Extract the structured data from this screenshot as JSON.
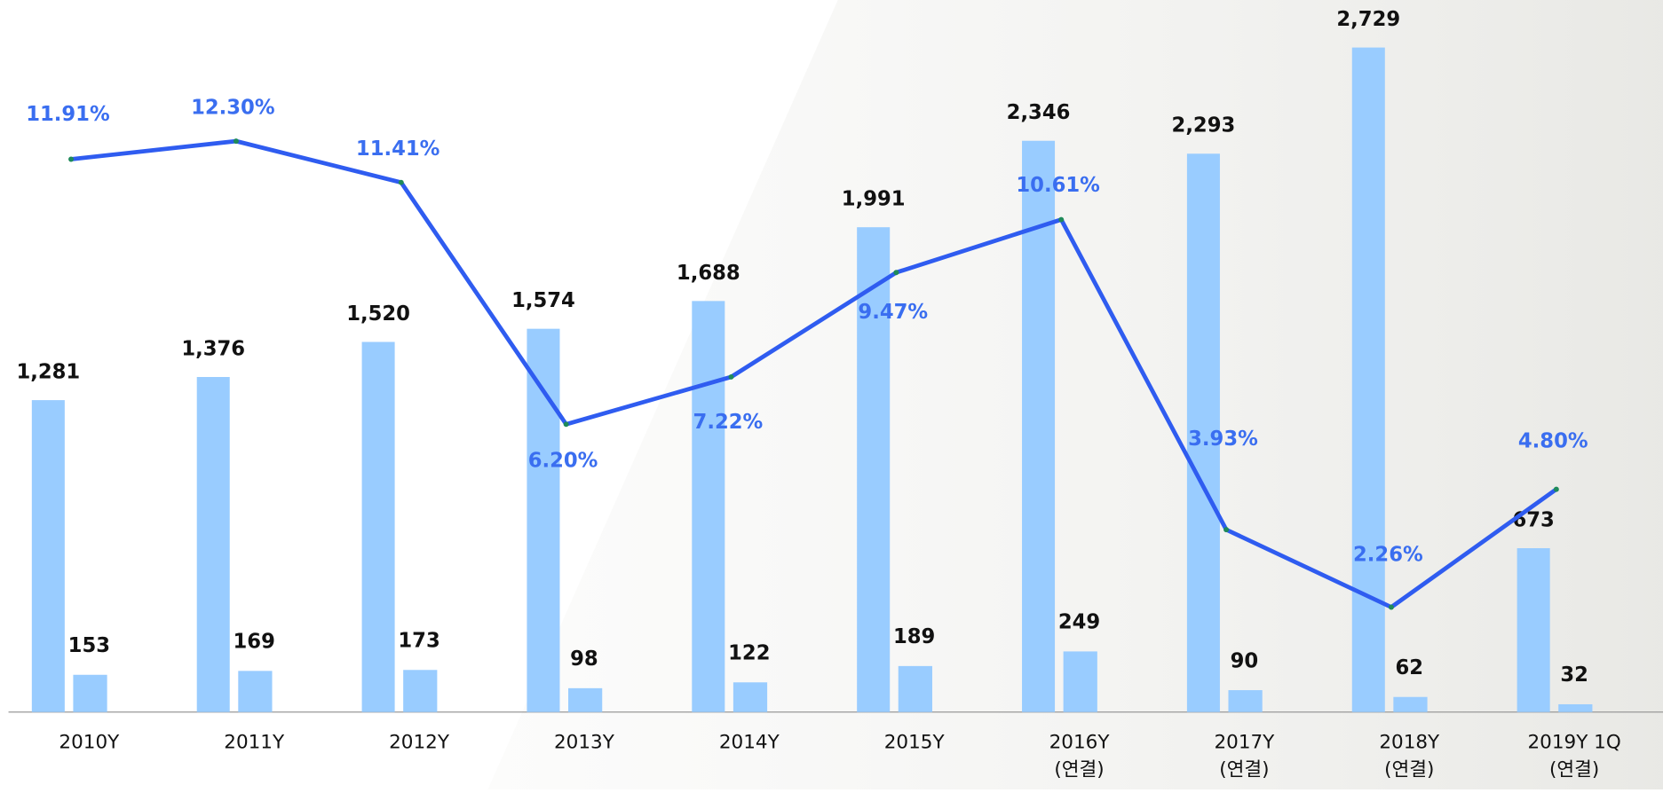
{
  "chart_data": {
    "type": "bar",
    "categories": [
      "2010Y",
      "2011Y",
      "2012Y",
      "2013Y",
      "2014Y",
      "2015Y",
      "2016Y\n(연결)",
      "2017Y\n(연결)",
      "2018Y\n(연결)",
      "2019Y 1Q\n(연결)"
    ],
    "series": [
      {
        "color": "#99ccff",
        "values": [
          1281,
          1376,
          1520,
          1574,
          1688,
          1991,
          2346,
          2293,
          2729,
          673
        ],
        "value_labels": [
          "1,281",
          "1,376",
          "1,520",
          "1,574",
          "1,688",
          "1,991",
          "2,346",
          "2,293",
          "2,729",
          "673"
        ]
      },
      {
        "color": "#99ccff",
        "values": [
          153,
          169,
          173,
          98,
          122,
          189,
          249,
          90,
          62,
          32
        ]
      },
      {
        "type": "line",
        "axis": "y2",
        "color": "#2f5cf0",
        "label_color": "#3a6ef0",
        "values": [
          11.91,
          12.3,
          11.41,
          6.2,
          7.22,
          9.47,
          10.61,
          3.93,
          2.26,
          4.8
        ],
        "value_labels": [
          "11.91%",
          "12.30%",
          "11.41%",
          "6.20%",
          "7.22%",
          "9.47%",
          "10.61%",
          "3.93%",
          "2.26%",
          "4.80%"
        ]
      }
    ],
    "ylim": [
      0,
      2924
    ],
    "y2lim": [
      0,
      15.34
    ]
  }
}
